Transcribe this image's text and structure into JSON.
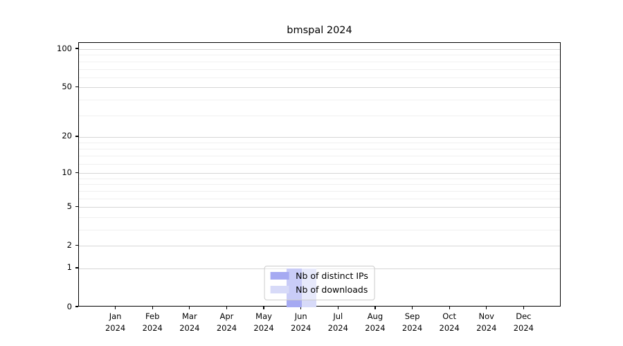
{
  "figure": {
    "background": "#ffffff"
  },
  "chart_data": {
    "type": "bar",
    "title": "bmspal 2024",
    "scale": "log1p",
    "ylim": [
      0,
      112
    ],
    "grid": true,
    "legend_position": "lower center",
    "categories": [
      {
        "month": "Jan",
        "year": "2024"
      },
      {
        "month": "Feb",
        "year": "2024"
      },
      {
        "month": "Mar",
        "year": "2024"
      },
      {
        "month": "Apr",
        "year": "2024"
      },
      {
        "month": "May",
        "year": "2024"
      },
      {
        "month": "Jun",
        "year": "2024"
      },
      {
        "month": "Jul",
        "year": "2024"
      },
      {
        "month": "Aug",
        "year": "2024"
      },
      {
        "month": "Sep",
        "year": "2024"
      },
      {
        "month": "Oct",
        "year": "2024"
      },
      {
        "month": "Nov",
        "year": "2024"
      },
      {
        "month": "Dec",
        "year": "2024"
      }
    ],
    "series": [
      {
        "name": "Nb of distinct IPs",
        "color": "#a6aaf2",
        "values": [
          0,
          0,
          0,
          0,
          0,
          1,
          0,
          0,
          0,
          0,
          0,
          0
        ]
      },
      {
        "name": "Nb of downloads",
        "color": "#d7daf8",
        "values": [
          0,
          0,
          0,
          0,
          0,
          1,
          0,
          0,
          0,
          0,
          0,
          0
        ]
      }
    ],
    "y_major_ticks": [
      0,
      1,
      2,
      5,
      10,
      20,
      50,
      100
    ],
    "y_minor_ticks": [
      3,
      4,
      6,
      7,
      8,
      9,
      12,
      14,
      16,
      18,
      30,
      40,
      60,
      70,
      80,
      90
    ],
    "colors": {
      "grid_major": "#d6d6d6",
      "grid_minor": "#f0f0f0",
      "axis": "#000000",
      "legend_border": "#cccccc"
    }
  }
}
